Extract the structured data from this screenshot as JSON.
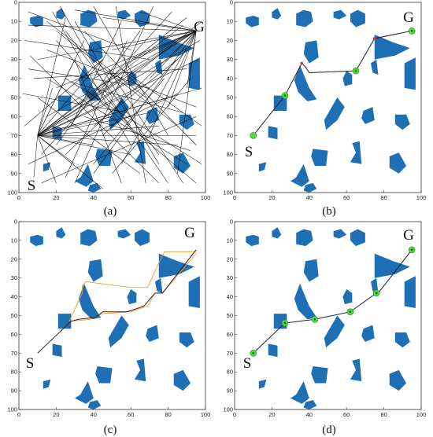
{
  "panels": [
    {
      "id": "a",
      "caption": "(a)",
      "start_label": "S",
      "goal_label": "G"
    },
    {
      "id": "b",
      "caption": "(b)",
      "start_label": "S",
      "goal_label": "G"
    },
    {
      "id": "c",
      "caption": "(c)",
      "start_label": "S",
      "goal_label": "G"
    },
    {
      "id": "d",
      "caption": "(d)",
      "start_label": "S",
      "goal_label": "G"
    }
  ],
  "axis": {
    "x_ticks": [
      0,
      20,
      40,
      60,
      80,
      100
    ],
    "y_ticks": [
      0,
      10,
      20,
      30,
      40,
      50,
      60,
      70,
      80,
      90,
      100
    ],
    "range": [
      0,
      100
    ]
  },
  "start": [
    10,
    70
  ],
  "goal": [
    95,
    15
  ],
  "obstacles": [
    {
      "name": "obstacle-1",
      "points": [
        [
          6,
          8
        ],
        [
          10,
          7
        ],
        [
          13,
          8
        ],
        [
          13,
          12
        ],
        [
          9,
          13
        ],
        [
          6,
          11
        ]
      ]
    },
    {
      "name": "obstacle-2",
      "points": [
        [
          20,
          5
        ],
        [
          23,
          3
        ],
        [
          25,
          7
        ],
        [
          23,
          9
        ],
        [
          20,
          8
        ]
      ]
    },
    {
      "name": "obstacle-3",
      "points": [
        [
          33,
          6
        ],
        [
          37,
          4
        ],
        [
          41,
          5
        ],
        [
          42,
          10
        ],
        [
          38,
          13
        ],
        [
          33,
          12
        ]
      ]
    },
    {
      "name": "obstacle-4",
      "points": [
        [
          53,
          5
        ],
        [
          57,
          4
        ],
        [
          60,
          7
        ],
        [
          56,
          9
        ],
        [
          53,
          8
        ]
      ]
    },
    {
      "name": "obstacle-5",
      "points": [
        [
          62,
          6
        ],
        [
          66,
          4
        ],
        [
          70,
          6
        ],
        [
          70,
          11
        ],
        [
          65,
          13
        ],
        [
          62,
          10
        ]
      ]
    },
    {
      "name": "obstacle-6",
      "points": [
        [
          38,
          21
        ],
        [
          44,
          20
        ],
        [
          45,
          29
        ],
        [
          40,
          32
        ],
        [
          37,
          27
        ]
      ]
    },
    {
      "name": "obstacle-7",
      "points": [
        [
          21,
          49
        ],
        [
          28,
          49
        ],
        [
          28,
          57
        ],
        [
          21,
          57
        ]
      ]
    },
    {
      "name": "obstacle-8",
      "points": [
        [
          32,
          41
        ],
        [
          35,
          33
        ],
        [
          40,
          45
        ],
        [
          44,
          51
        ],
        [
          39,
          52
        ],
        [
          34,
          47
        ]
      ]
    },
    {
      "name": "obstacle-9",
      "points": [
        [
          55,
          50
        ],
        [
          59,
          55
        ],
        [
          55,
          62
        ],
        [
          49,
          67
        ],
        [
          48,
          62
        ]
      ]
    },
    {
      "name": "obstacle-10",
      "points": [
        [
          60,
          36
        ],
        [
          63,
          38
        ],
        [
          63,
          43
        ],
        [
          59,
          44
        ],
        [
          58,
          40
        ]
      ]
    },
    {
      "name": "obstacle-11",
      "points": [
        [
          75,
          17
        ],
        [
          85,
          21
        ],
        [
          94,
          24
        ],
        [
          86,
          28
        ],
        [
          75,
          30
        ]
      ]
    },
    {
      "name": "obstacle-12",
      "points": [
        [
          73,
          32
        ],
        [
          76,
          30
        ],
        [
          77,
          38
        ],
        [
          74,
          37
        ]
      ]
    },
    {
      "name": "obstacle-13",
      "points": [
        [
          91,
          32
        ],
        [
          97,
          29
        ],
        [
          97,
          46
        ],
        [
          91,
          45
        ]
      ]
    },
    {
      "name": "obstacle-14",
      "points": [
        [
          69,
          57
        ],
        [
          74,
          55
        ],
        [
          75,
          62
        ],
        [
          70,
          64
        ],
        [
          68,
          61
        ]
      ]
    },
    {
      "name": "obstacle-15",
      "points": [
        [
          86,
          59
        ],
        [
          92,
          59
        ],
        [
          94,
          64
        ],
        [
          90,
          67
        ],
        [
          86,
          64
        ]
      ]
    },
    {
      "name": "obstacle-16",
      "points": [
        [
          18,
          65
        ],
        [
          23,
          66
        ],
        [
          23,
          72
        ],
        [
          18,
          71
        ]
      ]
    },
    {
      "name": "obstacle-17",
      "points": [
        [
          42,
          77
        ],
        [
          50,
          78
        ],
        [
          49,
          86
        ],
        [
          43,
          86
        ],
        [
          41,
          81
        ]
      ]
    },
    {
      "name": "obstacle-18",
      "points": [
        [
          63,
          74
        ],
        [
          67,
          73
        ],
        [
          68,
          85
        ],
        [
          62,
          84
        ],
        [
          65,
          79
        ]
      ]
    },
    {
      "name": "obstacle-19",
      "points": [
        [
          83,
          81
        ],
        [
          88,
          79
        ],
        [
          92,
          86
        ],
        [
          88,
          90
        ],
        [
          83,
          87
        ]
      ]
    },
    {
      "name": "obstacle-20",
      "points": [
        [
          13,
          85
        ],
        [
          17,
          84
        ],
        [
          16,
          88
        ],
        [
          13,
          89
        ]
      ]
    },
    {
      "name": "obstacle-21",
      "points": [
        [
          33,
          92
        ],
        [
          37,
          85
        ],
        [
          40,
          94
        ],
        [
          36,
          97
        ],
        [
          30,
          94
        ]
      ]
    },
    {
      "name": "obstacle-22",
      "points": [
        [
          38,
          96
        ],
        [
          42,
          95
        ],
        [
          44,
          98
        ],
        [
          40,
          100
        ],
        [
          37,
          99
        ]
      ]
    }
  ],
  "tree_edges_a": [
    [
      [
        10,
        70
      ],
      [
        95,
        15
      ]
    ],
    [
      [
        10,
        70
      ],
      [
        90,
        8
      ]
    ],
    [
      [
        10,
        70
      ],
      [
        97,
        20
      ]
    ],
    [
      [
        10,
        70
      ],
      [
        88,
        12
      ]
    ],
    [
      [
        10,
        70
      ],
      [
        96,
        30
      ]
    ],
    [
      [
        10,
        70
      ],
      [
        80,
        50
      ]
    ],
    [
      [
        10,
        70
      ],
      [
        70,
        58
      ]
    ],
    [
      [
        10,
        70
      ],
      [
        60,
        48
      ]
    ],
    [
      [
        10,
        70
      ],
      [
        55,
        40
      ]
    ],
    [
      [
        10,
        70
      ],
      [
        45,
        30
      ]
    ],
    [
      [
        10,
        70
      ],
      [
        35,
        20
      ]
    ],
    [
      [
        10,
        70
      ],
      [
        25,
        8
      ]
    ],
    [
      [
        10,
        70
      ],
      [
        30,
        30
      ]
    ],
    [
      [
        10,
        70
      ],
      [
        18,
        45
      ]
    ],
    [
      [
        10,
        70
      ],
      [
        40,
        75
      ]
    ],
    [
      [
        10,
        70
      ],
      [
        60,
        80
      ]
    ],
    [
      [
        10,
        70
      ],
      [
        85,
        75
      ]
    ],
    [
      [
        10,
        70
      ],
      [
        95,
        70
      ]
    ],
    [
      [
        10,
        70
      ],
      [
        75,
        65
      ]
    ],
    [
      [
        10,
        70
      ],
      [
        50,
        60
      ]
    ],
    [
      [
        10,
        70
      ],
      [
        98,
        45
      ]
    ],
    [
      [
        10,
        70
      ],
      [
        30,
        85
      ]
    ],
    [
      [
        10,
        70
      ],
      [
        20,
        95
      ]
    ],
    [
      [
        10,
        70
      ],
      [
        45,
        98
      ]
    ],
    [
      [
        10,
        70
      ],
      [
        8,
        92
      ]
    ],
    [
      [
        95,
        15
      ],
      [
        5,
        12
      ]
    ],
    [
      [
        95,
        15
      ],
      [
        10,
        30
      ]
    ],
    [
      [
        95,
        15
      ],
      [
        20,
        45
      ]
    ],
    [
      [
        95,
        15
      ],
      [
        15,
        60
      ]
    ],
    [
      [
        95,
        15
      ],
      [
        30,
        55
      ]
    ],
    [
      [
        95,
        15
      ],
      [
        40,
        40
      ]
    ],
    [
      [
        95,
        15
      ],
      [
        50,
        25
      ]
    ],
    [
      [
        95,
        15
      ],
      [
        60,
        30
      ]
    ],
    [
      [
        95,
        15
      ],
      [
        70,
        40
      ]
    ],
    [
      [
        95,
        15
      ],
      [
        80,
        55
      ]
    ],
    [
      [
        95,
        15
      ],
      [
        70,
        70
      ]
    ],
    [
      [
        95,
        15
      ],
      [
        55,
        85
      ]
    ],
    [
      [
        95,
        15
      ],
      [
        40,
        90
      ]
    ],
    [
      [
        95,
        15
      ],
      [
        25,
        80
      ]
    ],
    [
      [
        95,
        15
      ],
      [
        85,
        90
      ]
    ],
    [
      [
        95,
        15
      ],
      [
        65,
        5
      ]
    ],
    [
      [
        95,
        15
      ],
      [
        45,
        8
      ]
    ],
    [
      [
        95,
        15
      ],
      [
        30,
        4
      ]
    ],
    [
      [
        95,
        15
      ],
      [
        75,
        25
      ]
    ],
    [
      [
        95,
        15
      ],
      [
        90,
        45
      ]
    ],
    [
      [
        5,
        5
      ],
      [
        60,
        25
      ]
    ],
    [
      [
        3,
        20
      ],
      [
        70,
        30
      ]
    ],
    [
      [
        8,
        40
      ],
      [
        90,
        35
      ]
    ],
    [
      [
        15,
        25
      ],
      [
        95,
        55
      ]
    ],
    [
      [
        20,
        15
      ],
      [
        85,
        65
      ]
    ],
    [
      [
        25,
        40
      ],
      [
        98,
        85
      ]
    ],
    [
      [
        30,
        10
      ],
      [
        75,
        85
      ]
    ],
    [
      [
        35,
        45
      ],
      [
        95,
        95
      ]
    ],
    [
      [
        5,
        85
      ],
      [
        85,
        48
      ]
    ],
    [
      [
        12,
        95
      ],
      [
        95,
        60
      ]
    ],
    [
      [
        20,
        75
      ],
      [
        65,
        15
      ]
    ],
    [
      [
        28,
        65
      ],
      [
        55,
        10
      ]
    ],
    [
      [
        40,
        55
      ],
      [
        98,
        10
      ]
    ],
    [
      [
        45,
        70
      ],
      [
        90,
        25
      ]
    ],
    [
      [
        50,
        90
      ],
      [
        92,
        40
      ]
    ],
    [
      [
        55,
        95
      ],
      [
        30,
        30
      ]
    ],
    [
      [
        60,
        65
      ],
      [
        20,
        20
      ]
    ],
    [
      [
        65,
        90
      ],
      [
        10,
        50
      ]
    ],
    [
      [
        70,
        45
      ],
      [
        5,
        35
      ]
    ],
    [
      [
        75,
        80
      ],
      [
        25,
        15
      ]
    ],
    [
      [
        80,
        95
      ],
      [
        45,
        45
      ]
    ],
    [
      [
        85,
        30
      ],
      [
        40,
        65
      ]
    ],
    [
      [
        90,
        85
      ],
      [
        15,
        40
      ]
    ],
    [
      [
        95,
        75
      ],
      [
        35,
        15
      ]
    ],
    [
      [
        18,
        5
      ],
      [
        60,
        75
      ]
    ],
    [
      [
        22,
        2
      ],
      [
        50,
        50
      ]
    ],
    [
      [
        40,
        2
      ],
      [
        80,
        70
      ]
    ],
    [
      [
        52,
        2
      ],
      [
        68,
        95
      ]
    ],
    [
      [
        72,
        2
      ],
      [
        30,
        95
      ]
    ],
    [
      [
        82,
        5
      ],
      [
        12,
        80
      ]
    ],
    [
      [
        3,
        65
      ],
      [
        45,
        30
      ]
    ],
    [
      [
        2,
        48
      ],
      [
        58,
        58
      ]
    ],
    [
      [
        6,
        28
      ],
      [
        75,
        95
      ]
    ],
    [
      [
        35,
        60
      ],
      [
        92,
        78
      ]
    ],
    [
      [
        48,
        35
      ],
      [
        88,
        95
      ]
    ],
    [
      [
        58,
        20
      ],
      [
        25,
        92
      ]
    ],
    [
      [
        68,
        50
      ],
      [
        15,
        10
      ]
    ],
    [
      [
        78,
        40
      ],
      [
        40,
        85
      ]
    ],
    [
      [
        88,
        58
      ],
      [
        28,
        42
      ]
    ],
    [
      [
        98,
        65
      ],
      [
        55,
        35
      ]
    ]
  ],
  "raw_path_b": [
    [
      10,
      70
    ],
    [
      27,
      49
    ],
    [
      36,
      32
    ],
    [
      38,
      34
    ],
    [
      40,
      37
    ],
    [
      65,
      36
    ],
    [
      75,
      19
    ],
    [
      95,
      15
    ]
  ],
  "raw_nodes_b": [
    [
      27,
      49
    ],
    [
      65,
      36
    ],
    [
      95,
      15
    ]
  ],
  "corners_b": [
    [
      36,
      32
    ],
    [
      75,
      19
    ]
  ],
  "path_c": [
    [
      10,
      70
    ],
    [
      28,
      53
    ],
    [
      32,
      52
    ],
    [
      41,
      51
    ],
    [
      45,
      48
    ],
    [
      58,
      48
    ],
    [
      67,
      45
    ],
    [
      73,
      38
    ],
    [
      77,
      38
    ],
    [
      95,
      15
    ]
  ],
  "corridor_c": [
    [
      [
        27,
        53
      ],
      [
        34,
        38
      ],
      [
        34,
        34
      ],
      [
        36,
        32
      ],
      [
        60,
        35
      ],
      [
        69,
        35
      ],
      [
        75,
        22
      ],
      [
        78,
        16
      ],
      [
        95,
        16
      ]
    ],
    [
      [
        28,
        53
      ],
      [
        38,
        52
      ],
      [
        45,
        49
      ],
      [
        60,
        48
      ],
      [
        69,
        45
      ],
      [
        73,
        38
      ],
      [
        77,
        38
      ],
      [
        95,
        17
      ]
    ]
  ],
  "path_d": [
    [
      10,
      70
    ],
    [
      27,
      54
    ],
    [
      43,
      52
    ],
    [
      62,
      48
    ],
    [
      76,
      38
    ],
    [
      77,
      38
    ],
    [
      95,
      15
    ]
  ],
  "nodes_d": [
    [
      27,
      54
    ],
    [
      43,
      52
    ],
    [
      62,
      48
    ],
    [
      76,
      38
    ],
    [
      95,
      15
    ]
  ]
}
